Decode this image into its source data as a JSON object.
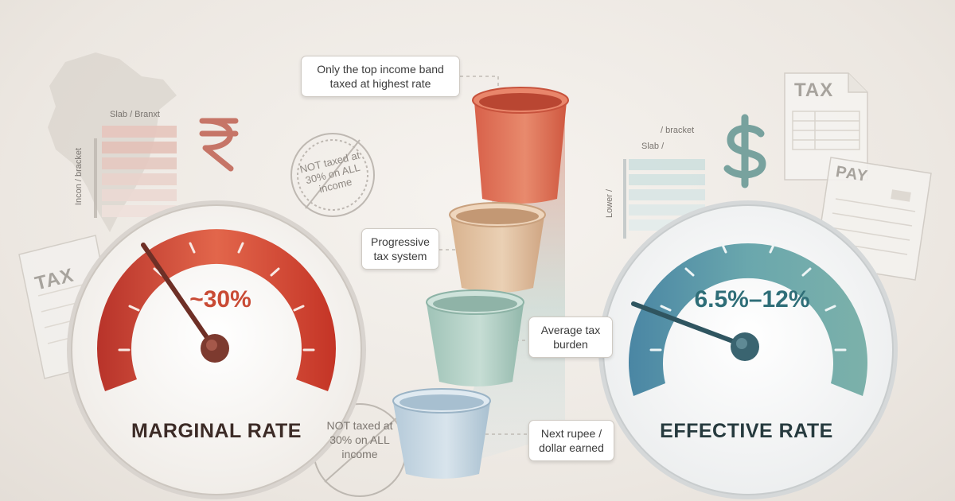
{
  "colors": {
    "marginal_accent": "#c9452f",
    "effective_accent": "#3f7a86",
    "background": "#ece7e1"
  },
  "icons": [
    "india-map-icon",
    "rupee-icon",
    "dollar-icon",
    "tax-document-icon",
    "pay-document-icon",
    "stamp-icon",
    "bucket-icon"
  ],
  "marginal": {
    "label": "MARGINAL RATE",
    "value": "~30%",
    "slab_caption": "Slab / Branxt",
    "axis_caption": "Incon / bracket",
    "needle_fraction": 0.3
  },
  "effective": {
    "label": "EFFECTIVE RATE",
    "value": "6.5%–12%",
    "slab_caption_1": "/ bracket",
    "slab_caption_2": "Slab /",
    "axis_caption": "Lower /",
    "needle_fraction": 0.1
  },
  "callouts": {
    "top_band": "Only the top income band taxed at highest rate",
    "progressive": "Progressive tax system",
    "average": "Average tax burden",
    "next_unit": "Next rupee / dollar earned"
  },
  "stamps": {
    "upper": "NOT taxed at 30% on ALL income",
    "lower": "NOT taxed at 30% on ALL income"
  },
  "documents": {
    "tax_left": "TAX",
    "tax_right": "TAX",
    "pay": "PAY"
  }
}
